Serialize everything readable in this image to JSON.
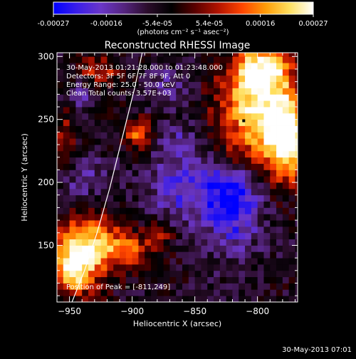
{
  "chart_data": {
    "type": "heatmap",
    "title": "Reconstructed RHESSI Image",
    "xlabel": "Heliocentric X (arcsec)",
    "ylabel": "Heliocentric Y (arcsec)",
    "xlim": [
      -960,
      -768
    ],
    "ylim": [
      105,
      303
    ],
    "x_ticks": [
      -950,
      -900,
      -850,
      -800
    ],
    "y_ticks": [
      150,
      200,
      250,
      300
    ],
    "grid": false,
    "colorbar": {
      "min": -0.00027,
      "max": 0.00027,
      "tick_values": [
        -0.00027,
        -0.00016,
        -5.4e-05,
        5.4e-05,
        0.00016,
        0.00027
      ],
      "tick_labels": [
        "-0.00027",
        "-0.00016",
        "-5.4e-05",
        "5.4e-05",
        "0.00016",
        "0.00027"
      ],
      "unit_label": "(photons cm⁻² s⁻¹ asec⁻²)",
      "stops": [
        "#0000ff",
        "#3a1ee8",
        "#6a36c8",
        "#54247e",
        "#2a0c2a",
        "#000000",
        "#5a0000",
        "#b41400",
        "#ff4600",
        "#ff9d08",
        "#ffe060",
        "#ffffff"
      ]
    },
    "annotations": [
      "30-May-2013 01:21:28.000 to 01:23:48.000",
      "Detectors: 3F 5F 6F 7F 8F 9F, Att 0",
      "Energy Range: 25.0 - 50.0 keV",
      "Clean     Total counts: 3.57E+03"
    ],
    "peak": {
      "label": "Position of Peak = [-811,249]",
      "x": -811,
      "y": 249
    },
    "limb_points": [
      [
        -948,
        105
      ],
      [
        -938,
        130
      ],
      [
        -928,
        160
      ],
      [
        -918,
        195
      ],
      [
        -908,
        235
      ],
      [
        -898,
        275
      ],
      [
        -892,
        303
      ]
    ],
    "intensity_blobs": [
      {
        "x": -800,
        "y": 255,
        "amp": 0.0003,
        "sx": 22,
        "sy": 30
      },
      {
        "x": -775,
        "y": 235,
        "amp": 0.00028,
        "sx": 12,
        "sy": 22
      },
      {
        "x": -797,
        "y": 290,
        "amp": 0.00022,
        "sx": 15,
        "sy": 12
      },
      {
        "x": -820,
        "y": 222,
        "amp": 0.0001,
        "sx": 10,
        "sy": 8
      },
      {
        "x": -935,
        "y": 150,
        "amp": 0.00026,
        "sx": 15,
        "sy": 20
      },
      {
        "x": -948,
        "y": 132,
        "amp": 0.00024,
        "sx": 10,
        "sy": 15
      },
      {
        "x": -905,
        "y": 148,
        "amp": 0.00018,
        "sx": 12,
        "sy": 10
      },
      {
        "x": -895,
        "y": 240,
        "amp": 0.0002,
        "sx": 8,
        "sy": 8
      },
      {
        "x": -925,
        "y": 288,
        "amp": 0.00014,
        "sx": 12,
        "sy": 10
      },
      {
        "x": -953,
        "y": 238,
        "amp": 0.00012,
        "sx": 6,
        "sy": 16
      },
      {
        "x": -878,
        "y": 158,
        "amp": 0.0001,
        "sx": 8,
        "sy": 8
      },
      {
        "x": -820,
        "y": 190,
        "amp": -0.00024,
        "sx": 16,
        "sy": 28
      },
      {
        "x": -862,
        "y": 195,
        "amp": -0.00014,
        "sx": 18,
        "sy": 18
      },
      {
        "x": -862,
        "y": 232,
        "amp": -0.0001,
        "sx": 12,
        "sy": 10
      },
      {
        "x": -938,
        "y": 200,
        "amp": -9e-05,
        "sx": 14,
        "sy": 16
      },
      {
        "x": -943,
        "y": 268,
        "amp": -0.0001,
        "sx": 10,
        "sy": 10
      },
      {
        "x": -872,
        "y": 275,
        "amp": -8e-05,
        "sx": 14,
        "sy": 12
      }
    ]
  },
  "footer": {
    "timestamp": "30-May-2013 07:01"
  }
}
